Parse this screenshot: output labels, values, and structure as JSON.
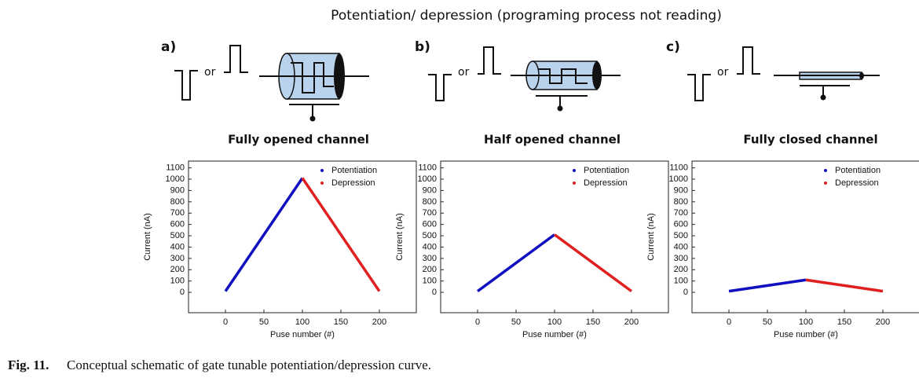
{
  "title": "Potentiation/ depression (programing process not reading)",
  "panels": [
    {
      "label": "a)",
      "or": "or",
      "channel": "Fully opened channel"
    },
    {
      "label": "b)",
      "or": "or",
      "channel": "Half opened channel"
    },
    {
      "label": "c)",
      "or": "or",
      "channel": "Fully closed channel"
    }
  ],
  "chart_data": [
    {
      "type": "line",
      "x_label": "Puse number (#)",
      "y_label": "Current (nA)",
      "x": [
        0,
        100,
        200
      ],
      "series": [
        {
          "name": "Potentiation",
          "color": "#1010c0",
          "values": [
            10,
            1010,
            null
          ]
        },
        {
          "name": "Depression",
          "color": "#e02020",
          "values": [
            null,
            1010,
            10
          ]
        }
      ],
      "xlim": [
        -48,
        248
      ],
      "ylim": [
        -180,
        1160
      ],
      "xticks": [
        0,
        50,
        100,
        150,
        200
      ],
      "yticks": [
        0,
        100,
        200,
        300,
        400,
        500,
        600,
        700,
        800,
        900,
        1000,
        1100
      ],
      "legend": "upper right"
    },
    {
      "type": "line",
      "x_label": "Puse number (#)",
      "y_label": "Current (nA)",
      "x": [
        0,
        100,
        200
      ],
      "series": [
        {
          "name": "Potentiation",
          "color": "#1010c0",
          "values": [
            10,
            510,
            null
          ]
        },
        {
          "name": "Depression",
          "color": "#e02020",
          "values": [
            null,
            510,
            10
          ]
        }
      ],
      "xlim": [
        -48,
        248
      ],
      "ylim": [
        -180,
        1160
      ],
      "xticks": [
        0,
        50,
        100,
        150,
        200
      ],
      "yticks": [
        0,
        100,
        200,
        300,
        400,
        500,
        600,
        700,
        800,
        900,
        1000,
        1100
      ],
      "legend": "upper right"
    },
    {
      "type": "line",
      "x_label": "Puse number (#)",
      "y_label": "Current (nA)",
      "x": [
        0,
        100,
        200
      ],
      "series": [
        {
          "name": "Potentiation",
          "color": "#1010c0",
          "values": [
            10,
            110,
            null
          ]
        },
        {
          "name": "Depression",
          "color": "#e02020",
          "values": [
            null,
            110,
            10
          ]
        }
      ],
      "xlim": [
        -48,
        248
      ],
      "ylim": [
        -180,
        1160
      ],
      "xticks": [
        0,
        50,
        100,
        150,
        200
      ],
      "yticks": [
        0,
        100,
        200,
        300,
        400,
        500,
        600,
        700,
        800,
        900,
        1000,
        1100
      ],
      "legend": "upper right"
    }
  ],
  "caption": {
    "label": "Fig. 11.",
    "text": "Conceptual schematic of gate tunable potentiation/depression curve."
  }
}
